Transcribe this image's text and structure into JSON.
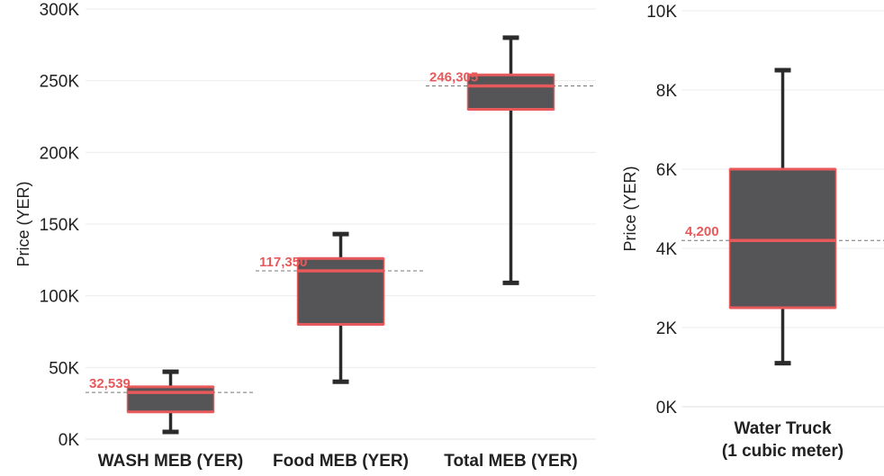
{
  "colors": {
    "box_fill": "#555457",
    "accent": "#E8595B",
    "whisker": "#2B2B2B",
    "grid": "#ECECEC",
    "reference_line": "#777777"
  },
  "chart_data": [
    {
      "type": "box",
      "ylabel": "Price (YER)",
      "ylim": [
        0,
        300000
      ],
      "yticks": [
        0,
        50000,
        100000,
        150000,
        200000,
        250000,
        300000
      ],
      "ytick_labels": [
        "0K",
        "50K",
        "100K",
        "150K",
        "200K",
        "250K",
        "300K"
      ],
      "grid": true,
      "categories": [
        "WASH MEB (YER)",
        "Food MEB (YER)",
        "Total MEB (YER)"
      ],
      "boxes": [
        {
          "category": "WASH MEB (YER)",
          "whisker_low": 5000,
          "q1": 19000,
          "median": 32539,
          "q3": 36500,
          "whisker_high": 47000,
          "median_label": "32,539"
        },
        {
          "category": "Food MEB (YER)",
          "whisker_low": 40000,
          "q1": 80000,
          "median": 117350,
          "q3": 126000,
          "whisker_high": 143000,
          "median_label": "117,350"
        },
        {
          "category": "Total MEB (YER)",
          "whisker_low": 109000,
          "q1": 230000,
          "median": 246305,
          "q3": 254000,
          "whisker_high": 280000,
          "median_label": "246,305"
        }
      ]
    },
    {
      "type": "box",
      "ylabel": "Price (YER)",
      "ylim": [
        0,
        10000
      ],
      "yticks": [
        0,
        2000,
        4000,
        6000,
        8000,
        10000
      ],
      "ytick_labels": [
        "0K",
        "2K",
        "4K",
        "6K",
        "8K",
        "10K"
      ],
      "grid": true,
      "categories": [
        "Water Truck\n(1 cubic meter)"
      ],
      "boxes": [
        {
          "category": "Water Truck\n(1 cubic meter)",
          "whisker_low": 1100,
          "q1": 2500,
          "median": 4200,
          "q3": 6000,
          "whisker_high": 8500,
          "median_label": "4,200"
        }
      ]
    }
  ]
}
